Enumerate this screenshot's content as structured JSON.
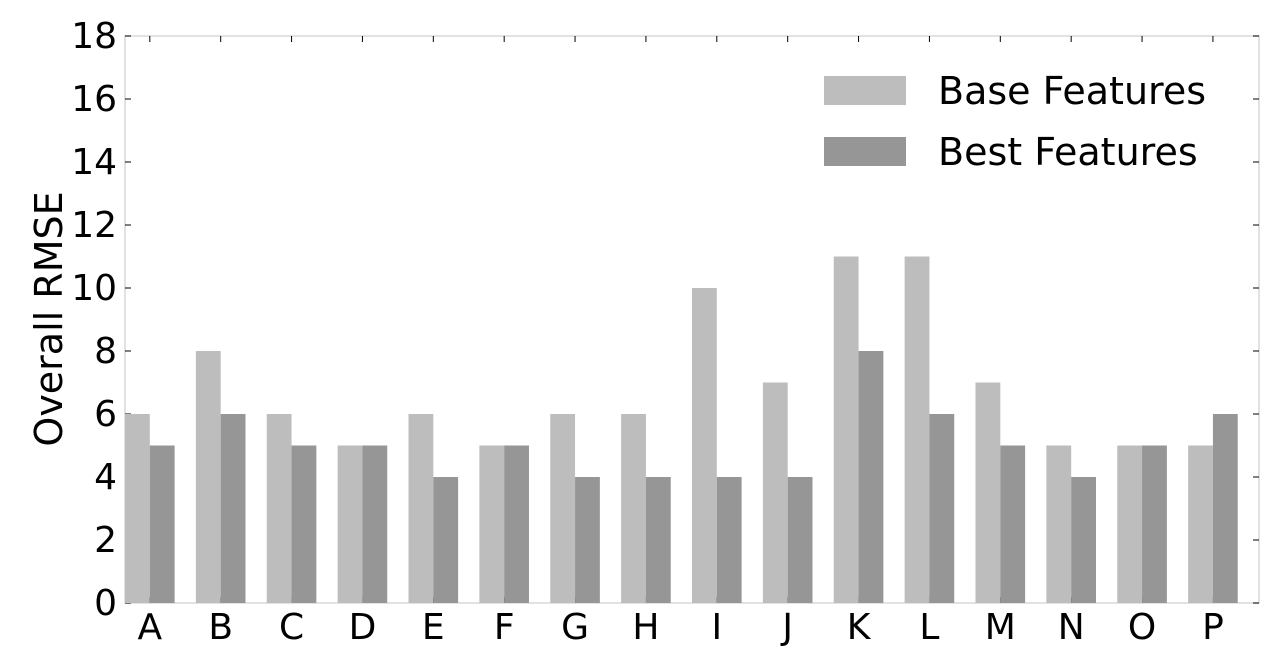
{
  "chart_data": {
    "type": "bar",
    "title": "",
    "xlabel": "",
    "ylabel": "Overall RMSE",
    "categories": [
      "A",
      "B",
      "C",
      "D",
      "E",
      "F",
      "G",
      "H",
      "I",
      "J",
      "K",
      "L",
      "M",
      "N",
      "O",
      "P"
    ],
    "series": [
      {
        "name": "Base Features",
        "color": "#bdbdbd",
        "values": [
          6,
          8,
          6,
          5,
          6,
          5,
          6,
          6,
          10,
          7,
          11,
          11,
          7,
          5,
          5,
          5
        ]
      },
      {
        "name": "Best Features",
        "color": "#969696",
        "values": [
          5,
          6,
          5,
          5,
          4,
          5,
          4,
          4,
          4,
          4,
          8,
          6,
          5,
          4,
          5,
          6
        ]
      }
    ],
    "ylim": [
      0,
      18
    ],
    "yticks": [
      "0",
      "2",
      "4",
      "6",
      "8",
      "10",
      "12",
      "14",
      "16",
      "18"
    ],
    "grid": false,
    "legend_position": "top-right"
  }
}
